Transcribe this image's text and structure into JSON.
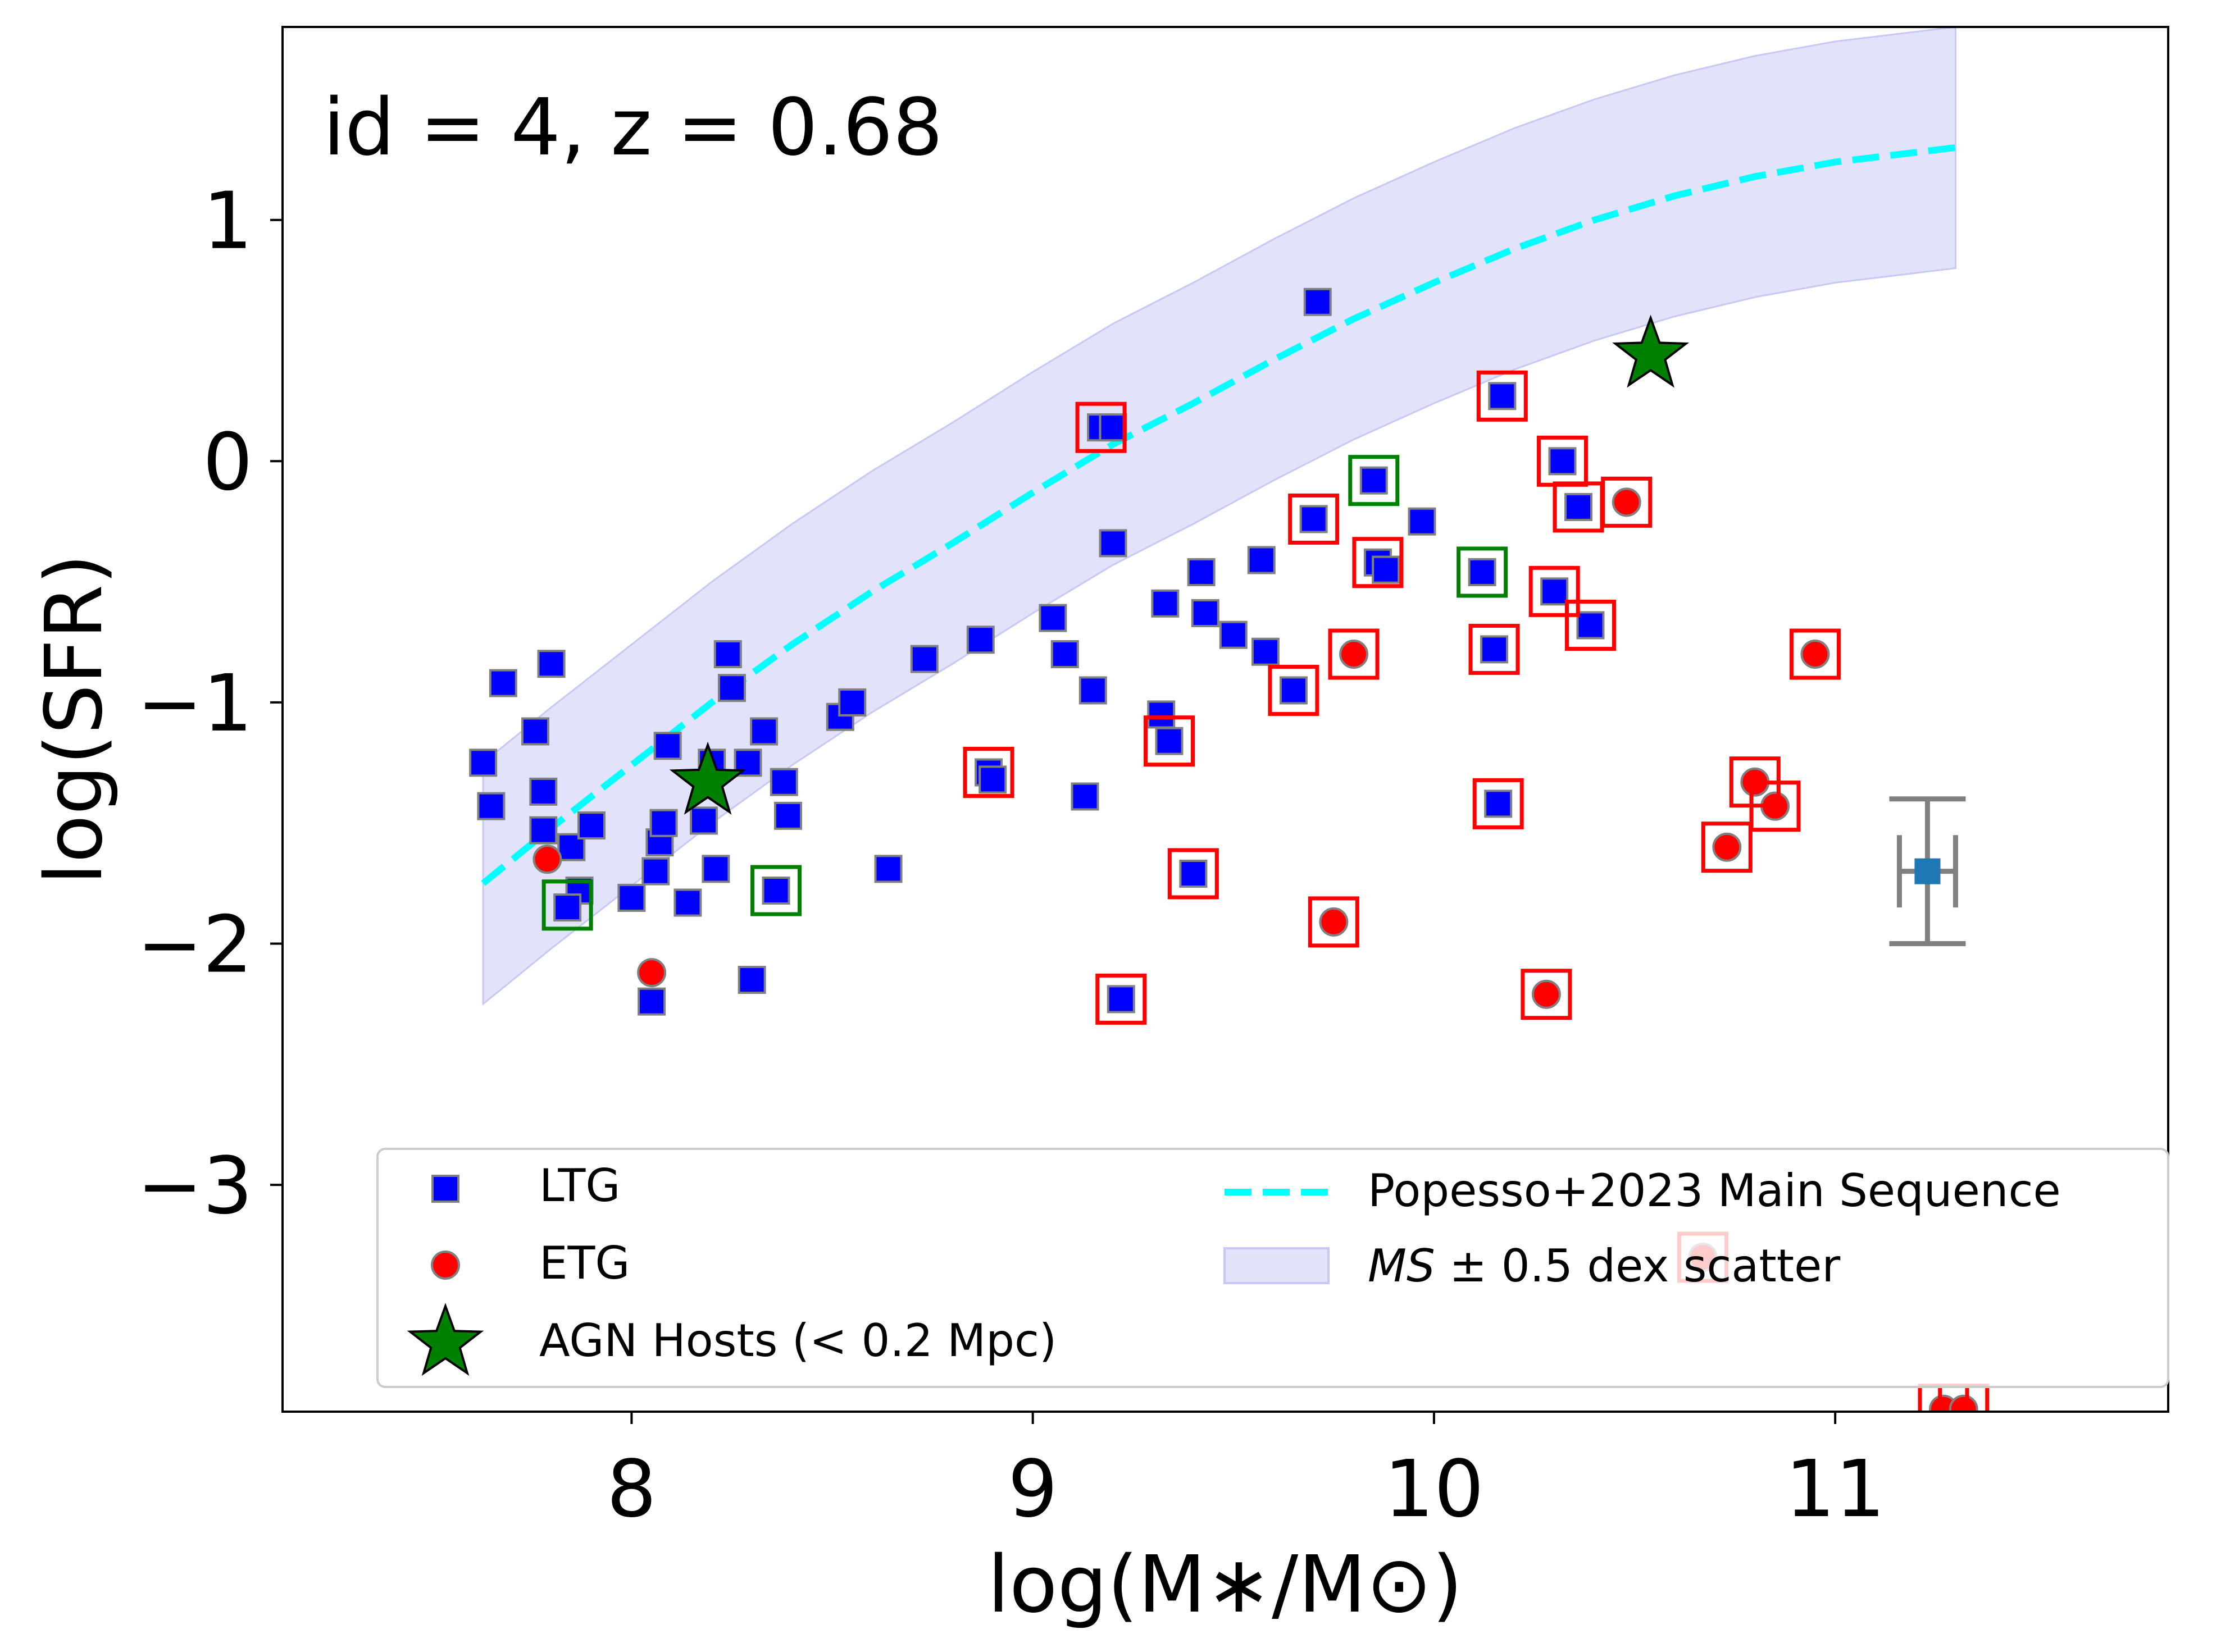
{
  "chart_data": {
    "type": "scatter",
    "annotation": "id = 4, z = 0.68",
    "xlabel": "log(M∗/M⊙)",
    "ylabel": "log(SFR)",
    "xlim": [
      7.13,
      11.83
    ],
    "ylim": [
      -3.94,
      1.8
    ],
    "x_ticks": [
      {
        "value": 8,
        "label": "8"
      },
      {
        "value": 9,
        "label": "9"
      },
      {
        "value": 10,
        "label": "10"
      },
      {
        "value": 11,
        "label": "11"
      }
    ],
    "y_ticks": [
      {
        "value": 1,
        "label": "1"
      },
      {
        "value": 0,
        "label": "0"
      },
      {
        "value": -1,
        "label": "−1"
      },
      {
        "value": -2,
        "label": "−2"
      },
      {
        "value": -3,
        "label": "−3"
      }
    ],
    "legend": {
      "placement": "bottom",
      "entries": [
        {
          "label": "LTG",
          "marker": "square",
          "color": "#0000ff"
        },
        {
          "label": "ETG",
          "marker": "circle",
          "color": "#ff0000"
        },
        {
          "label": "AGN Hosts (< 0.2 Mpc)",
          "marker": "star",
          "color": "#008000"
        },
        {
          "label": "Popesso+2023 Main Sequence",
          "marker": "dashed-line",
          "color": "#00ffff"
        },
        {
          "label_italic": "MS",
          "label": " ± 0.5 dex scatter",
          "marker": "band",
          "color": "#e2e2fb"
        }
      ]
    },
    "colors": {
      "ltg": "#0000ff",
      "etg": "#ff0000",
      "agn": "#008000",
      "main_sequence": "#00ffff",
      "band": "#e2e2fb",
      "highlight_red": "#ff0000",
      "highlight_green": "#008000",
      "errorbar": "#808080",
      "errorbar_point": "#1f77b4"
    },
    "main_sequence": {
      "x_range": [
        7.63,
        11.3
      ],
      "scatter_dex": 0.5,
      "points": [
        [
          7.63,
          -1.75
        ],
        [
          7.8,
          -1.52
        ],
        [
          8.0,
          -1.26
        ],
        [
          8.2,
          -1.0
        ],
        [
          8.4,
          -0.76
        ],
        [
          8.6,
          -0.54
        ],
        [
          8.8,
          -0.34
        ],
        [
          9.0,
          -0.13
        ],
        [
          9.2,
          0.07
        ],
        [
          9.4,
          0.24
        ],
        [
          9.6,
          0.42
        ],
        [
          9.8,
          0.59
        ],
        [
          10.0,
          0.74
        ],
        [
          10.2,
          0.88
        ],
        [
          10.4,
          1.0
        ],
        [
          10.6,
          1.1
        ],
        [
          10.8,
          1.18
        ],
        [
          11.0,
          1.24
        ],
        [
          11.2,
          1.28
        ],
        [
          11.3,
          1.3
        ]
      ]
    },
    "series": [
      {
        "name": "LTG",
        "points": [
          [
            7.63,
            -1.25
          ],
          [
            7.65,
            -1.43
          ],
          [
            7.68,
            -0.92
          ],
          [
            7.76,
            -1.12
          ],
          [
            7.78,
            -1.37
          ],
          [
            7.78,
            -1.53
          ],
          [
            7.8,
            -0.84
          ],
          [
            7.85,
            -1.6
          ],
          [
            7.87,
            -1.78
          ],
          [
            7.84,
            -1.85
          ],
          [
            7.9,
            -1.51
          ],
          [
            8.0,
            -1.81
          ],
          [
            8.05,
            -2.24
          ],
          [
            8.06,
            -1.7
          ],
          [
            8.07,
            -1.58
          ],
          [
            8.08,
            -1.5
          ],
          [
            8.09,
            -1.18
          ],
          [
            8.14,
            -1.83
          ],
          [
            8.18,
            -1.49
          ],
          [
            8.2,
            -1.25
          ],
          [
            8.21,
            -1.69
          ],
          [
            8.24,
            -0.8
          ],
          [
            8.25,
            -0.94
          ],
          [
            8.29,
            -1.25
          ],
          [
            8.3,
            -2.15
          ],
          [
            8.33,
            -1.12
          ],
          [
            8.36,
            -1.78
          ],
          [
            8.38,
            -1.33
          ],
          [
            8.39,
            -1.47
          ],
          [
            8.52,
            -1.06
          ],
          [
            8.55,
            -1.0
          ],
          [
            8.64,
            -1.69
          ],
          [
            8.73,
            -0.82
          ],
          [
            8.87,
            -0.74
          ],
          [
            8.89,
            -1.29
          ],
          [
            8.9,
            -1.32
          ],
          [
            9.05,
            -0.65
          ],
          [
            9.08,
            -0.8
          ],
          [
            9.13,
            -1.39
          ],
          [
            9.15,
            -0.95
          ],
          [
            9.17,
            0.14
          ],
          [
            9.2,
            0.14
          ],
          [
            9.2,
            -0.34
          ],
          [
            9.22,
            -2.23
          ],
          [
            9.32,
            -1.05
          ],
          [
            9.33,
            -0.59
          ],
          [
            9.34,
            -1.16
          ],
          [
            9.4,
            -1.71
          ],
          [
            9.42,
            -0.46
          ],
          [
            9.43,
            -0.63
          ],
          [
            9.5,
            -0.72
          ],
          [
            9.57,
            -0.41
          ],
          [
            9.58,
            -0.79
          ],
          [
            9.65,
            -0.95
          ],
          [
            9.7,
            -0.24
          ],
          [
            9.71,
            0.66
          ],
          [
            9.85,
            -0.08
          ],
          [
            9.86,
            -0.42
          ],
          [
            9.88,
            -0.45
          ],
          [
            9.97,
            -0.25
          ],
          [
            10.12,
            -0.46
          ],
          [
            10.15,
            -0.78
          ],
          [
            10.16,
            -1.42
          ],
          [
            10.17,
            0.27
          ],
          [
            10.3,
            -0.54
          ],
          [
            10.32,
            0.0
          ],
          [
            10.36,
            -0.19
          ],
          [
            10.39,
            -0.68
          ]
        ]
      },
      {
        "name": "ETG",
        "points": [
          [
            7.79,
            -1.65
          ],
          [
            8.05,
            -2.12
          ],
          [
            9.75,
            -1.91
          ],
          [
            9.8,
            -0.8
          ],
          [
            10.28,
            -2.21
          ],
          [
            10.48,
            -0.17
          ],
          [
            10.67,
            -3.3
          ],
          [
            10.73,
            -1.6
          ],
          [
            10.8,
            -1.33
          ],
          [
            10.85,
            -1.43
          ],
          [
            10.95,
            -0.8
          ],
          [
            11.27,
            -3.93
          ],
          [
            11.32,
            -3.93
          ]
        ]
      },
      {
        "name": "AGN Hosts (< 0.2 Mpc)",
        "points": [
          [
            8.19,
            -1.33
          ],
          [
            10.54,
            0.44
          ]
        ]
      }
    ],
    "highlight_red": [
      [
        8.89,
        -1.29
      ],
      [
        9.17,
        0.14
      ],
      [
        9.22,
        -2.23
      ],
      [
        9.34,
        -1.16
      ],
      [
        9.4,
        -1.71
      ],
      [
        9.65,
        -0.95
      ],
      [
        9.7,
        -0.24
      ],
      [
        9.75,
        -1.91
      ],
      [
        9.8,
        -0.8
      ],
      [
        9.86,
        -0.42
      ],
      [
        10.15,
        -0.78
      ],
      [
        10.16,
        -1.42
      ],
      [
        10.17,
        0.27
      ],
      [
        10.28,
        -2.21
      ],
      [
        10.3,
        -0.54
      ],
      [
        10.32,
        0.0
      ],
      [
        10.36,
        -0.19
      ],
      [
        10.39,
        -0.68
      ],
      [
        10.48,
        -0.17
      ],
      [
        10.67,
        -3.3
      ],
      [
        10.73,
        -1.6
      ],
      [
        10.8,
        -1.33
      ],
      [
        10.85,
        -1.43
      ],
      [
        10.95,
        -0.8
      ],
      [
        11.27,
        -3.93
      ],
      [
        11.32,
        -3.93
      ]
    ],
    "highlight_green": [
      [
        7.84,
        -1.84
      ],
      [
        8.36,
        -1.78
      ],
      [
        9.85,
        -0.08
      ],
      [
        10.12,
        -0.46
      ]
    ],
    "error_bar": {
      "x": 11.23,
      "y": -1.7,
      "y_err_outer": 0.3,
      "y_err_inner": 0.15,
      "x_err": 0.07
    }
  }
}
